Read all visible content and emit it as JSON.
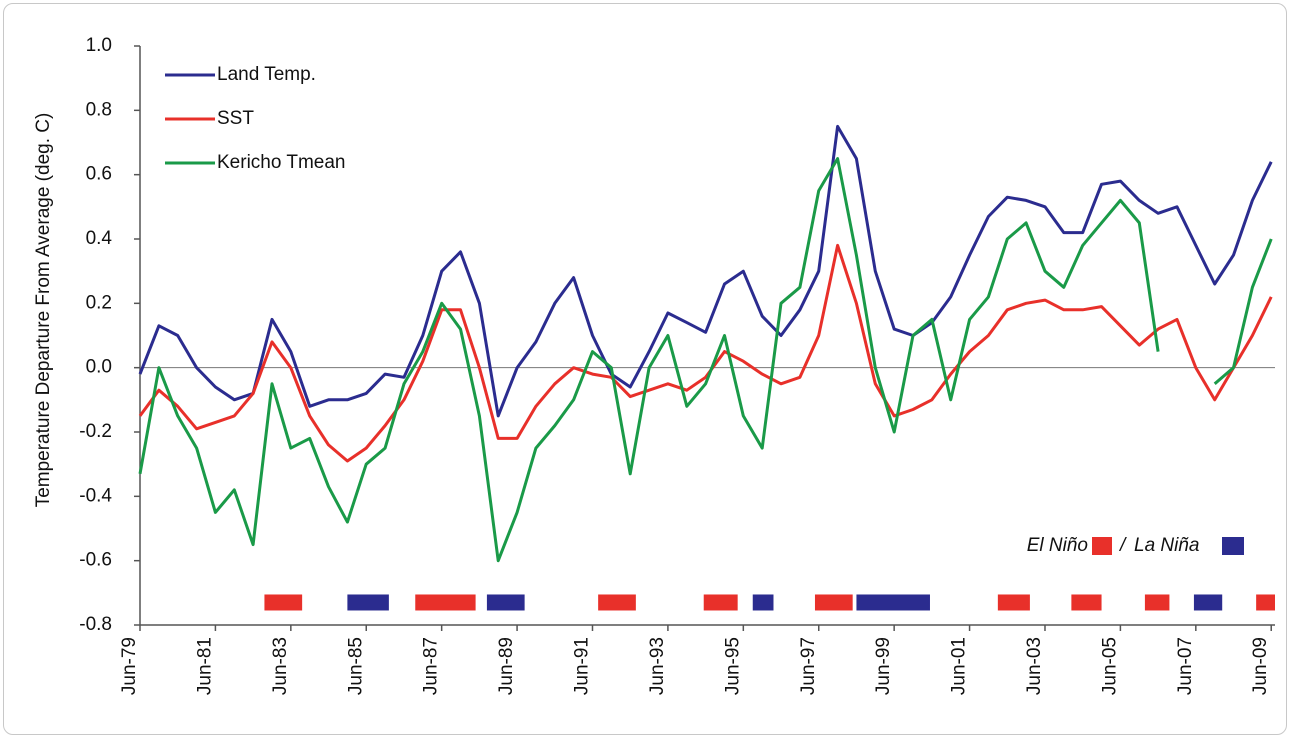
{
  "chart_data": {
    "type": "line",
    "y_label": "Temperature Departure From Average (deg. C)",
    "legend": "upper left",
    "xlim": [
      1979.5,
      2009.6
    ],
    "xticks": [
      {
        "value": 1979.5,
        "label": "Jun-79"
      },
      {
        "value": 1981.5,
        "label": "Jun-81"
      },
      {
        "value": 1983.5,
        "label": "Jun-83"
      },
      {
        "value": 1985.5,
        "label": "Jun-85"
      },
      {
        "value": 1987.5,
        "label": "Jun-87"
      },
      {
        "value": 1989.5,
        "label": "Jun-89"
      },
      {
        "value": 1991.5,
        "label": "Jun-91"
      },
      {
        "value": 1993.5,
        "label": "Jun-93"
      },
      {
        "value": 1995.5,
        "label": "Jun-95"
      },
      {
        "value": 1997.5,
        "label": "Jun-97"
      },
      {
        "value": 1999.5,
        "label": "Jun-99"
      },
      {
        "value": 2001.5,
        "label": "Jun-01"
      },
      {
        "value": 2003.5,
        "label": "Jun-03"
      },
      {
        "value": 2005.5,
        "label": "Jun-05"
      },
      {
        "value": 2007.5,
        "label": "Jun-07"
      },
      {
        "value": 2009.5,
        "label": "Jun-09"
      }
    ],
    "ylim": [
      -0.8,
      1.0
    ],
    "yticks": [
      {
        "value": 1,
        "label": "1.0"
      },
      0.8,
      0.6,
      0.4,
      0.2,
      {
        "value": 0,
        "label": "0.0"
      },
      -0.2,
      -0.4,
      -0.6,
      -0.8
    ],
    "x": [
      1979.5,
      1980,
      1980.5,
      1981,
      1981.5,
      1982,
      1982.5,
      1983,
      1983.5,
      1984,
      1984.5,
      1985,
      1985.5,
      1986,
      1986.5,
      1987,
      1987.5,
      1988,
      1988.5,
      1989,
      1989.5,
      1990,
      1990.5,
      1991,
      1991.5,
      1992,
      1992.5,
      1993,
      1993.5,
      1994,
      1994.5,
      1995,
      1995.5,
      1996,
      1996.5,
      1997,
      1997.5,
      1998,
      1998.5,
      1999,
      1999.5,
      2000,
      2000.5,
      2001,
      2001.5,
      2002,
      2002.5,
      2003,
      2003.5,
      2004,
      2004.5,
      2005,
      2005.5,
      2006,
      2006.5,
      2007,
      2007.5,
      2008,
      2008.5,
      2009,
      2009.5
    ],
    "series": [
      {
        "name": "Land Temp.",
        "color": "#2b2c8f",
        "values": [
          -0.02,
          0.13,
          0.1,
          0.0,
          -0.06,
          -0.1,
          -0.08,
          0.15,
          0.05,
          -0.12,
          -0.1,
          -0.1,
          -0.08,
          -0.02,
          -0.03,
          0.1,
          0.3,
          0.36,
          0.2,
          -0.15,
          0.0,
          0.08,
          0.2,
          0.28,
          0.1,
          -0.02,
          -0.06,
          0.05,
          0.17,
          0.14,
          0.11,
          0.26,
          0.3,
          0.16,
          0.1,
          0.18,
          0.3,
          0.75,
          0.65,
          0.3,
          0.12,
          0.1,
          0.14,
          0.22,
          0.35,
          0.47,
          0.53,
          0.52,
          0.5,
          0.42,
          0.42,
          0.57,
          0.58,
          0.52,
          0.48,
          0.5,
          0.38,
          0.26,
          0.35,
          0.52,
          0.64
        ]
      },
      {
        "name": "SST",
        "color": "#e8302a",
        "values": [
          -0.15,
          -0.07,
          -0.12,
          -0.19,
          -0.17,
          -0.15,
          -0.08,
          0.08,
          0.0,
          -0.15,
          -0.24,
          -0.29,
          -0.25,
          -0.18,
          -0.1,
          0.02,
          0.18,
          0.18,
          0.0,
          -0.22,
          -0.22,
          -0.12,
          -0.05,
          0.0,
          -0.02,
          -0.03,
          -0.09,
          -0.07,
          -0.05,
          -0.07,
          -0.03,
          0.05,
          0.02,
          -0.02,
          -0.05,
          -0.03,
          0.1,
          0.38,
          0.2,
          -0.05,
          -0.15,
          -0.13,
          -0.1,
          -0.02,
          0.05,
          0.1,
          0.18,
          0.2,
          0.21,
          0.18,
          0.18,
          0.19,
          0.13,
          0.07,
          0.12,
          0.15,
          0.0,
          -0.1,
          0.0,
          0.1,
          0.22
        ]
      },
      {
        "name": "Kericho Tmean",
        "color": "#1a9a48",
        "values": [
          -0.33,
          0.0,
          -0.15,
          -0.25,
          -0.45,
          -0.38,
          -0.55,
          -0.05,
          -0.25,
          -0.22,
          -0.37,
          -0.48,
          -0.3,
          -0.25,
          -0.05,
          0.05,
          0.2,
          0.12,
          -0.15,
          -0.6,
          -0.45,
          -0.25,
          -0.18,
          -0.1,
          0.05,
          0.0,
          -0.33,
          0.0,
          0.1,
          -0.12,
          -0.05,
          0.1,
          -0.15,
          -0.25,
          0.2,
          0.25,
          0.55,
          0.65,
          0.35,
          0.0,
          -0.2,
          0.1,
          0.15,
          -0.1,
          0.15,
          0.22,
          0.4,
          0.45,
          0.3,
          0.25,
          0.38,
          0.45,
          0.52,
          0.45,
          0.05,
          null,
          null,
          -0.05,
          0.0,
          0.25,
          0.4
        ]
      }
    ],
    "periods": [
      {
        "name": "El Niño",
        "color": "#e8302a",
        "ranges": [
          [
            1982.8,
            1983.8
          ],
          [
            1986.8,
            1988.4
          ],
          [
            1991.65,
            1992.65
          ],
          [
            1994.45,
            1995.35
          ],
          [
            1997.4,
            1998.4
          ],
          [
            2002.25,
            2003.1
          ],
          [
            2004.2,
            2005.0
          ],
          [
            2006.15,
            2006.8
          ],
          [
            2009.1,
            2009.6
          ]
        ]
      },
      {
        "name": "La Niña",
        "color": "#2b2c8f",
        "ranges": [
          [
            1985.0,
            1986.1
          ],
          [
            1988.7,
            1989.7
          ],
          [
            1995.75,
            1996.3
          ],
          [
            1998.5,
            2000.45
          ],
          [
            2007.45,
            2008.2
          ]
        ]
      }
    ],
    "periods_separator": "/"
  }
}
